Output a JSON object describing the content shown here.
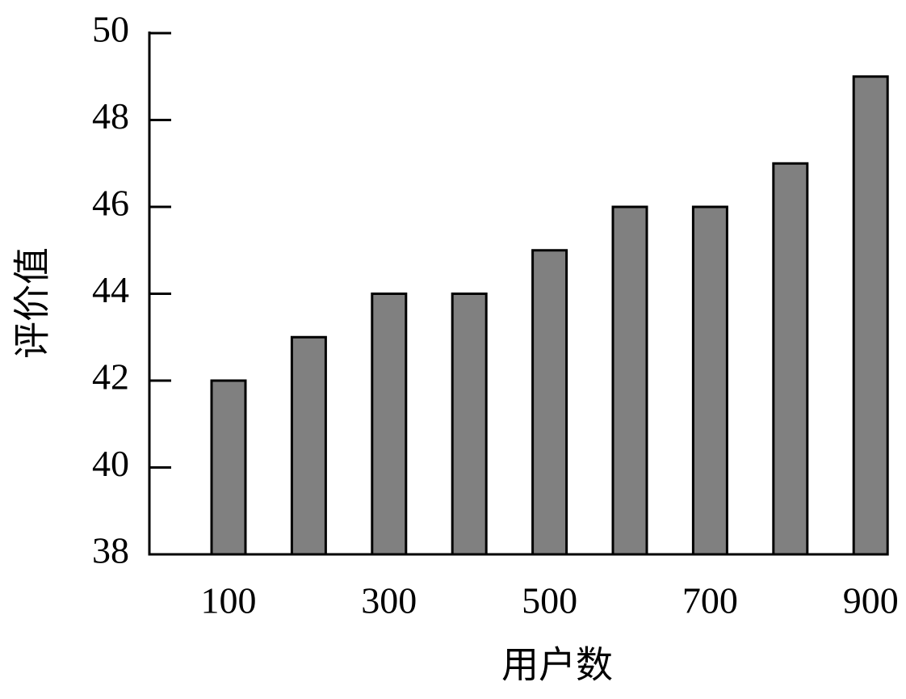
{
  "chart_data": {
    "type": "bar",
    "xlabel": "用户数",
    "ylabel": "评价值",
    "categories": [
      "100",
      null,
      "300",
      null,
      "500",
      null,
      "700",
      null,
      "900"
    ],
    "values": [
      42,
      43,
      44,
      44,
      45,
      46,
      46,
      47,
      49
    ],
    "color": "#808080",
    "ylim": [
      38,
      50
    ],
    "yticks": [
      38,
      40,
      42,
      44,
      46,
      48,
      50
    ],
    "grid": false
  }
}
